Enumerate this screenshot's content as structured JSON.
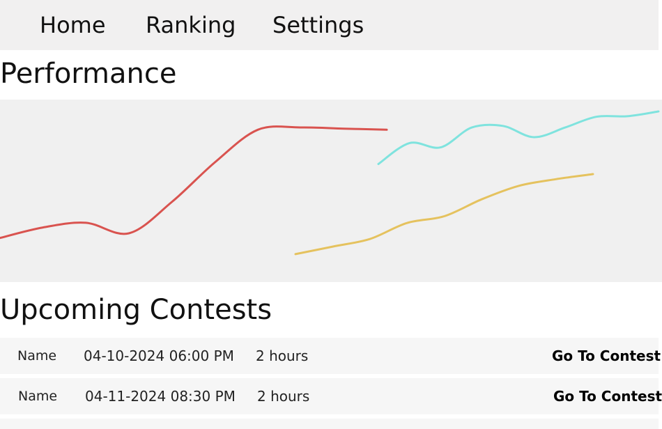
{
  "nav": {
    "items": [
      {
        "label": "Home"
      },
      {
        "label": "Ranking"
      },
      {
        "label": "Settings"
      }
    ]
  },
  "performance": {
    "title": "Performance"
  },
  "chart_data": {
    "type": "line",
    "grid": false,
    "legend": "none",
    "series": [
      {
        "color": "#d9534f",
        "values": [
          0.05,
          0.14,
          0.18,
          0.09,
          0.36,
          0.7,
          0.98,
          1.0,
          0.99,
          0.98
        ]
      },
      {
        "color": "#7fe3de",
        "values": [
          0.02,
          0.41,
          0.33,
          0.7,
          0.73,
          0.52,
          0.7,
          0.9,
          0.91,
          1.0
        ]
      },
      {
        "color": "#e5c25e",
        "values": [
          0.05,
          0.14,
          0.23,
          0.42,
          0.5,
          0.7,
          0.86,
          0.94,
          1.0
        ]
      }
    ]
  },
  "upcoming": {
    "title": "Upcoming Contests",
    "rows": [
      {
        "name": "Name",
        "date": "04-10-2024 06:00 PM",
        "duration": "2 hours",
        "action": "Go To Contest"
      },
      {
        "name": "Name",
        "date": "04-11-2024 08:30 PM",
        "duration": "2 hours",
        "action": "Go To Contest"
      }
    ]
  }
}
